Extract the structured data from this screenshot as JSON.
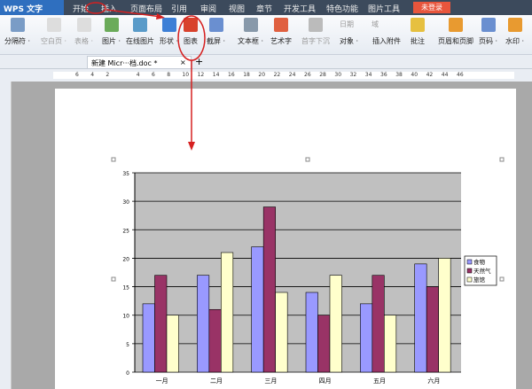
{
  "title_bar": {
    "app": "WPS 文字",
    "menus": [
      "开始",
      "插入",
      "页面布局",
      "引用",
      "审阅",
      "视图",
      "章节",
      "开发工具",
      "特色功能",
      "图片工具"
    ],
    "login": "未登录"
  },
  "ribbon": {
    "items": [
      {
        "label": "分隔符 ·",
        "enabled": true
      },
      {
        "label": "空白页 ·",
        "enabled": false
      },
      {
        "label": "表格 ·",
        "enabled": false
      },
      {
        "label": "图片 ·",
        "enabled": true
      },
      {
        "label": "在线图片",
        "enabled": true
      },
      {
        "label": "形状 ·",
        "enabled": true
      },
      {
        "label": "图表",
        "enabled": true
      },
      {
        "label": "截屏 ·",
        "enabled": true
      },
      {
        "label": "文本框 ·",
        "enabled": true
      },
      {
        "label": "艺术字",
        "enabled": true
      },
      {
        "label": "首字下沉",
        "enabled": false
      },
      {
        "label": "对象 ·",
        "enabled": true
      },
      {
        "label": "插入附件",
        "enabled": true
      },
      {
        "label": "批注",
        "enabled": true
      },
      {
        "label": "页眉和页脚",
        "enabled": true
      },
      {
        "label": "页码 ·",
        "enabled": true
      },
      {
        "label": "水印 ·",
        "enabled": true
      }
    ],
    "small": [
      "日期",
      "域"
    ]
  },
  "doc_tab": {
    "name": "新建 Micr···档.doc *",
    "close": "×",
    "add": "+"
  },
  "ruler": {
    "ticks": [
      "6",
      "4",
      "2",
      "",
      "4",
      "6",
      "8",
      "10",
      "12",
      "14",
      "16",
      "18",
      "20",
      "22",
      "24",
      "26",
      "28",
      "30",
      "32",
      "34",
      "36",
      "38",
      "40",
      "42",
      "44",
      "46"
    ]
  },
  "colors": {
    "annotation": "#d62020",
    "plot_bg": "#c0c0c0"
  },
  "chart_data": {
    "type": "bar",
    "categories": [
      "一月",
      "二月",
      "三月",
      "四月",
      "五月",
      "六月"
    ],
    "series": [
      {
        "name": "食物",
        "values": [
          12,
          17,
          22,
          14,
          12,
          19
        ],
        "color": "#9999ff"
      },
      {
        "name": "天然气",
        "values": [
          17,
          11,
          29,
          10,
          17,
          15
        ],
        "color": "#993366"
      },
      {
        "name": "旅馆",
        "values": [
          10,
          21,
          14,
          17,
          10,
          20
        ],
        "color": "#ffffcc"
      }
    ],
    "ylim": [
      0,
      35
    ],
    "yticks": [
      "0",
      "5",
      "10",
      "15",
      "20",
      "25",
      "30",
      "35"
    ],
    "grid": true,
    "legend": "right"
  }
}
